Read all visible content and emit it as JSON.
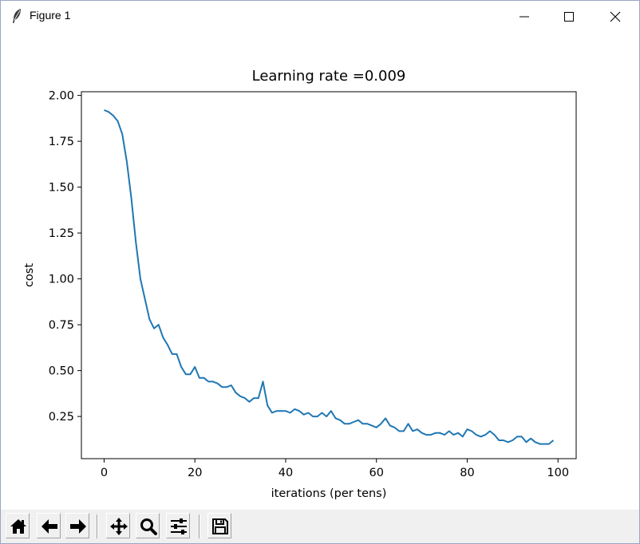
{
  "window": {
    "title": "Figure 1",
    "icons": {
      "app": "feather-icon",
      "minimize": "minimize-icon",
      "maximize": "maximize-icon",
      "close": "close-icon"
    }
  },
  "toolbar": {
    "buttons": [
      {
        "name": "home-button",
        "icon": "home-icon"
      },
      {
        "name": "back-button",
        "icon": "arrow-left-icon"
      },
      {
        "name": "forward-button",
        "icon": "arrow-right-icon"
      },
      {
        "name": "pan-button",
        "icon": "move-icon"
      },
      {
        "name": "zoom-button",
        "icon": "magnifier-icon"
      },
      {
        "name": "configure-subplots-button",
        "icon": "sliders-icon"
      },
      {
        "name": "save-button",
        "icon": "floppy-disk-icon"
      }
    ]
  },
  "chart_data": {
    "type": "line",
    "title": "Learning rate =0.009",
    "xlabel": "iterations (per tens)",
    "ylabel": "cost",
    "xlim": [
      -5,
      104
    ],
    "ylim": [
      0.02,
      2.02
    ],
    "xticks": [
      0,
      20,
      40,
      60,
      80,
      100
    ],
    "xtick_labels": [
      "0",
      "20",
      "40",
      "60",
      "80",
      "100"
    ],
    "yticks": [
      0.25,
      0.5,
      0.75,
      1.0,
      1.25,
      1.5,
      1.75,
      2.0
    ],
    "ytick_labels": [
      "0.25",
      "0.50",
      "0.75",
      "1.00",
      "1.25",
      "1.50",
      "1.75",
      "2.00"
    ],
    "grid": false,
    "line_color": "#1f77b4",
    "series": [
      {
        "x": [
          0,
          1,
          2,
          3,
          4,
          5,
          6,
          7,
          8,
          9,
          10,
          11,
          12,
          13,
          14,
          15,
          16,
          17,
          18,
          19,
          20,
          21,
          22,
          23,
          24,
          25,
          26,
          27,
          28,
          29,
          30,
          31,
          32,
          33,
          34,
          35,
          36,
          37,
          38,
          39,
          40,
          41,
          42,
          43,
          44,
          45,
          46,
          47,
          48,
          49,
          50,
          51,
          52,
          53,
          54,
          55,
          56,
          57,
          58,
          59,
          60,
          61,
          62,
          63,
          64,
          65,
          66,
          67,
          68,
          69,
          70,
          71,
          72,
          73,
          74,
          75,
          76,
          77,
          78,
          79,
          80,
          81,
          82,
          83,
          84,
          85,
          86,
          87,
          88,
          89,
          90,
          91,
          92,
          93,
          94,
          95,
          96,
          97,
          98,
          99
        ],
        "y": [
          1.92,
          1.91,
          1.89,
          1.86,
          1.79,
          1.64,
          1.44,
          1.2,
          1.0,
          0.89,
          0.78,
          0.73,
          0.75,
          0.68,
          0.64,
          0.59,
          0.59,
          0.52,
          0.48,
          0.48,
          0.52,
          0.46,
          0.46,
          0.44,
          0.44,
          0.43,
          0.41,
          0.41,
          0.42,
          0.38,
          0.36,
          0.35,
          0.33,
          0.35,
          0.35,
          0.44,
          0.31,
          0.27,
          0.28,
          0.28,
          0.28,
          0.27,
          0.29,
          0.28,
          0.26,
          0.27,
          0.25,
          0.25,
          0.27,
          0.25,
          0.28,
          0.24,
          0.23,
          0.21,
          0.21,
          0.22,
          0.23,
          0.21,
          0.21,
          0.2,
          0.19,
          0.21,
          0.24,
          0.2,
          0.19,
          0.17,
          0.17,
          0.21,
          0.17,
          0.18,
          0.16,
          0.15,
          0.15,
          0.16,
          0.16,
          0.15,
          0.17,
          0.15,
          0.16,
          0.14,
          0.18,
          0.17,
          0.15,
          0.14,
          0.15,
          0.17,
          0.15,
          0.12,
          0.12,
          0.11,
          0.12,
          0.14,
          0.14,
          0.11,
          0.13,
          0.11,
          0.1,
          0.1,
          0.1,
          0.12
        ]
      }
    ]
  }
}
